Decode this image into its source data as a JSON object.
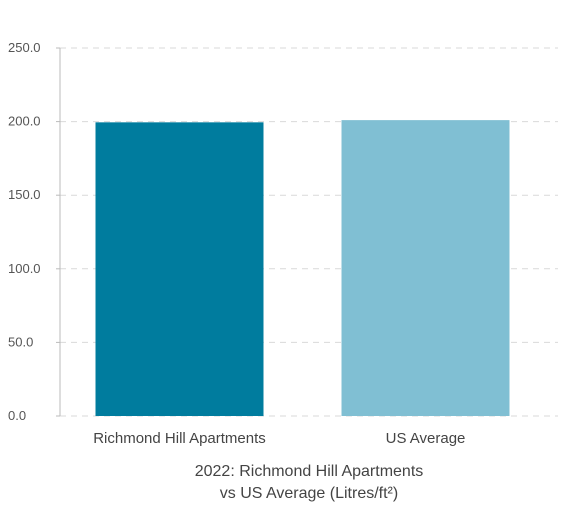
{
  "chart_data": {
    "type": "bar",
    "title_lines": [
      "2022: Richmond Hill Apartments",
      "vs US Average (Litres/ft²)"
    ],
    "categories": [
      "Richmond Hill Apartments",
      "US Average"
    ],
    "values": [
      199.5,
      201.0
    ],
    "colors": [
      "#007c9e",
      "#80bfd3"
    ],
    "ylim": [
      0,
      250
    ],
    "yticks": [
      "0.0",
      "50.0",
      "100.0",
      "150.0",
      "200.0",
      "250.0"
    ],
    "grid": true,
    "legend": "none"
  }
}
